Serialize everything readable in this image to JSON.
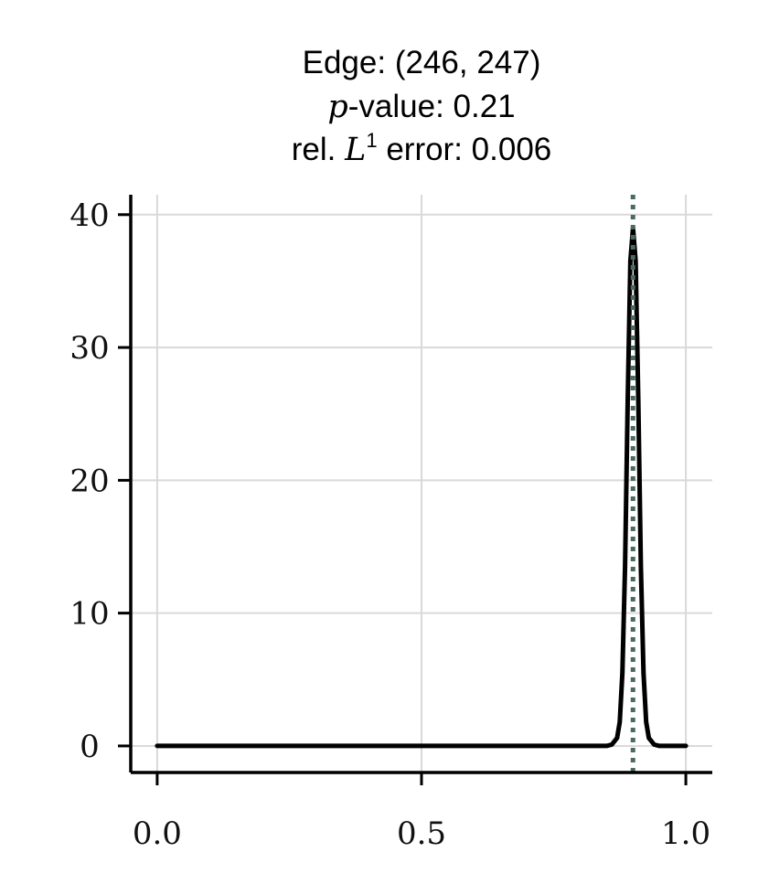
{
  "chart_data": {
    "type": "line",
    "title_lines": [
      "Edge: (246, 247)",
      "p-value: 0.21",
      "rel. L1 error: 0.006"
    ],
    "title": {
      "line1": "Edge: (246, 247)",
      "pvalue_var": "p",
      "pvalue_rest": "-value: 0.21",
      "error_prefix": "rel. ",
      "error_var": "L",
      "error_sup": "1",
      "error_rest": " error: 0.006"
    },
    "xlabel": "",
    "ylabel": "",
    "xlim": [
      -0.05,
      1.05
    ],
    "ylim": [
      -2,
      41.5
    ],
    "xticks": [
      0.0,
      0.5,
      1.0
    ],
    "xtick_labels": [
      "0.0",
      "0.5",
      "1.0"
    ],
    "yticks": [
      0,
      10,
      20,
      30,
      40
    ],
    "ytick_labels": [
      "0",
      "10",
      "20",
      "30",
      "40"
    ],
    "grid": true,
    "series": [
      {
        "color": "#000000",
        "style": "solid",
        "x": [
          0.0,
          0.2,
          0.4,
          0.6,
          0.8,
          0.85,
          0.86,
          0.87,
          0.875,
          0.88,
          0.885,
          0.89,
          0.895,
          0.9,
          0.905,
          0.91,
          0.915,
          0.92,
          0.925,
          0.93,
          0.94,
          0.95,
          1.0
        ],
        "y": [
          0,
          0,
          0,
          0,
          0,
          0,
          0.1,
          0.6,
          1.8,
          5.5,
          13.5,
          26,
          36.5,
          39,
          36.5,
          26,
          13.5,
          5.5,
          1.8,
          0.6,
          0.1,
          0,
          0
        ]
      }
    ],
    "reference_line": {
      "x": 0.9,
      "color": "#4a6b5d",
      "style": "dotted"
    }
  }
}
